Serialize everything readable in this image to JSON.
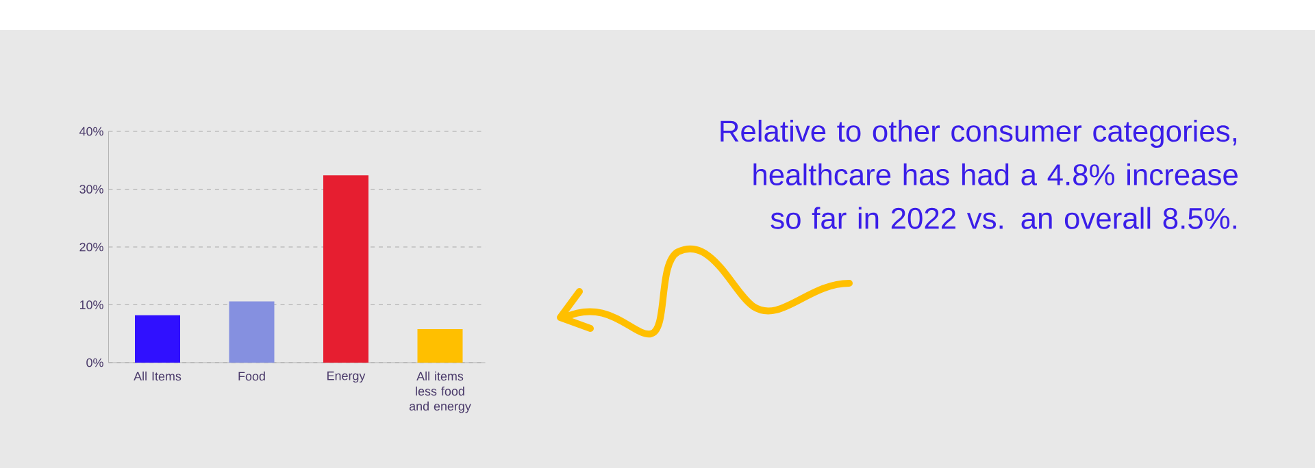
{
  "chart_data": {
    "type": "bar",
    "categories": [
      "All Items",
      "Food",
      "Energy",
      "All items less food and energy"
    ],
    "values": [
      8.2,
      10.6,
      32.4,
      5.8
    ],
    "colors": [
      "#3010ff",
      "#8590e0",
      "#e61e30",
      "#ffbf00"
    ],
    "ylim": [
      0,
      40
    ],
    "yticks": [
      {
        "value": 0,
        "label": "0%"
      },
      {
        "value": 10,
        "label": "10%"
      },
      {
        "value": 20,
        "label": "20%"
      },
      {
        "value": 30,
        "label": "30%"
      },
      {
        "value": 40,
        "label": "40%"
      }
    ],
    "grid": "y",
    "annotations": [
      "Relative to other consumer categories, healthcare has had a 4.8% increase so far in 2022 vs. an overall 8.5%."
    ]
  }
}
